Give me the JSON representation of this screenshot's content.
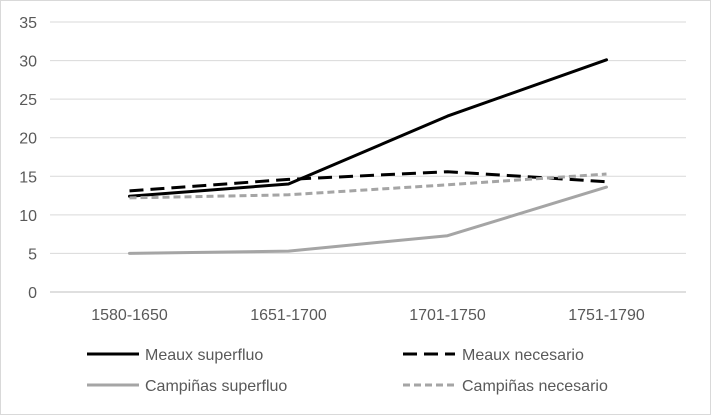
{
  "chart_data": {
    "type": "line",
    "title": "",
    "xlabel": "",
    "ylabel": "",
    "categories": [
      "1580-1650",
      "1651-1700",
      "1701-1750",
      "1751-1790"
    ],
    "ylim": [
      0,
      35
    ],
    "yticks": [
      0,
      5,
      10,
      15,
      20,
      25,
      30,
      35
    ],
    "grid": "horizontal",
    "legend_position": "bottom",
    "series": [
      {
        "name": "Meaux superfluo",
        "values": [
          12.4,
          14.0,
          22.8,
          30.1
        ],
        "color": "#000000",
        "dash": "solid"
      },
      {
        "name": "Meaux necesario",
        "values": [
          13.1,
          14.6,
          15.6,
          14.3
        ],
        "color": "#000000",
        "dash": "dashed"
      },
      {
        "name": "Campiñas superfluo",
        "values": [
          5.0,
          5.3,
          7.3,
          13.6
        ],
        "color": "#a5a5a5",
        "dash": "solid"
      },
      {
        "name": "Campiñas necesario",
        "values": [
          12.2,
          12.6,
          13.9,
          15.3
        ],
        "color": "#a5a5a5",
        "dash": "dotted"
      }
    ]
  }
}
